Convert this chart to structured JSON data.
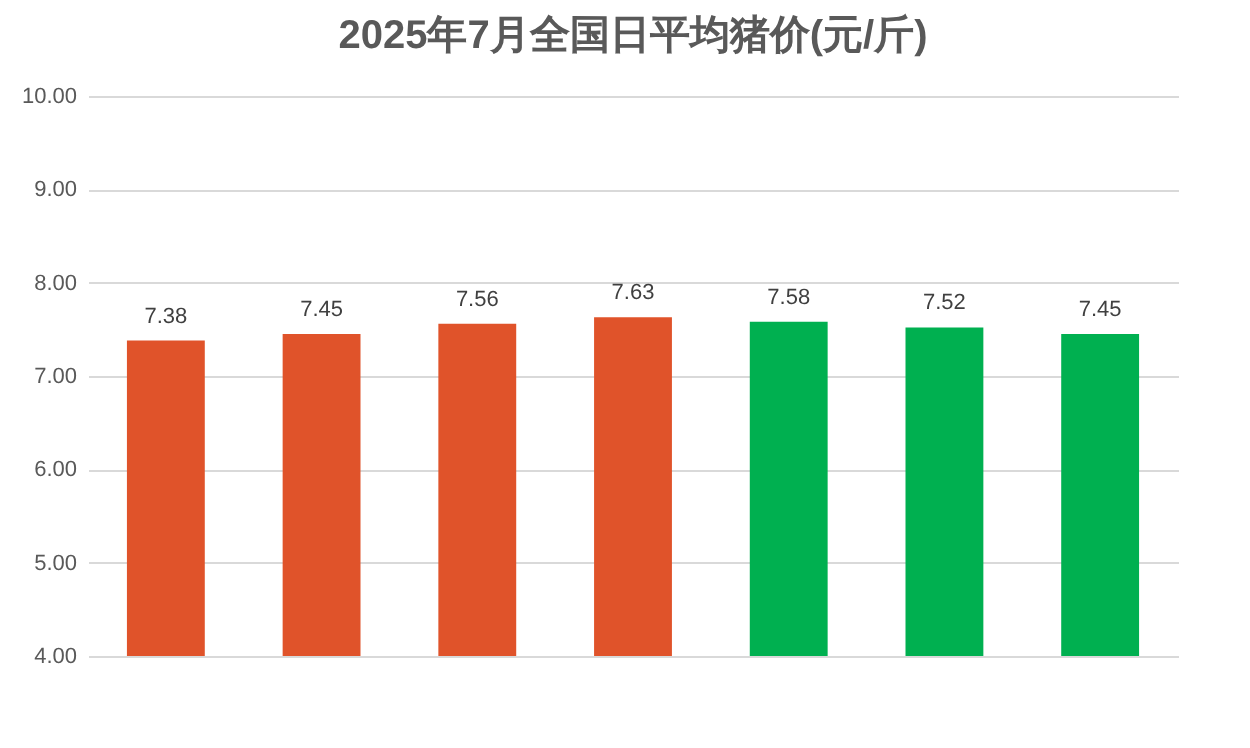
{
  "chart_data": {
    "type": "bar",
    "title": "2025年7月全国日平均猪价(元/斤)",
    "categories": [
      null,
      null,
      null,
      null,
      null,
      null,
      null
    ],
    "values": [
      7.38,
      7.45,
      7.56,
      7.63,
      7.58,
      7.52,
      7.45
    ],
    "colors": [
      "#e0532a",
      "#e0532a",
      "#e0532a",
      "#e0532a",
      "#00b050",
      "#00b050",
      "#00b050"
    ],
    "ylim": [
      4,
      10
    ],
    "yticks": [
      {
        "value": 4,
        "label": "4.00"
      },
      {
        "value": 5,
        "label": "5.00"
      },
      {
        "value": 6,
        "label": "6.00"
      },
      {
        "value": 7,
        "label": "7.00"
      },
      {
        "value": 8,
        "label": "8.00"
      },
      {
        "value": 9,
        "label": "9.00"
      },
      {
        "value": 10,
        "label": "10.00"
      }
    ],
    "grid": "y",
    "data_labels": true
  }
}
